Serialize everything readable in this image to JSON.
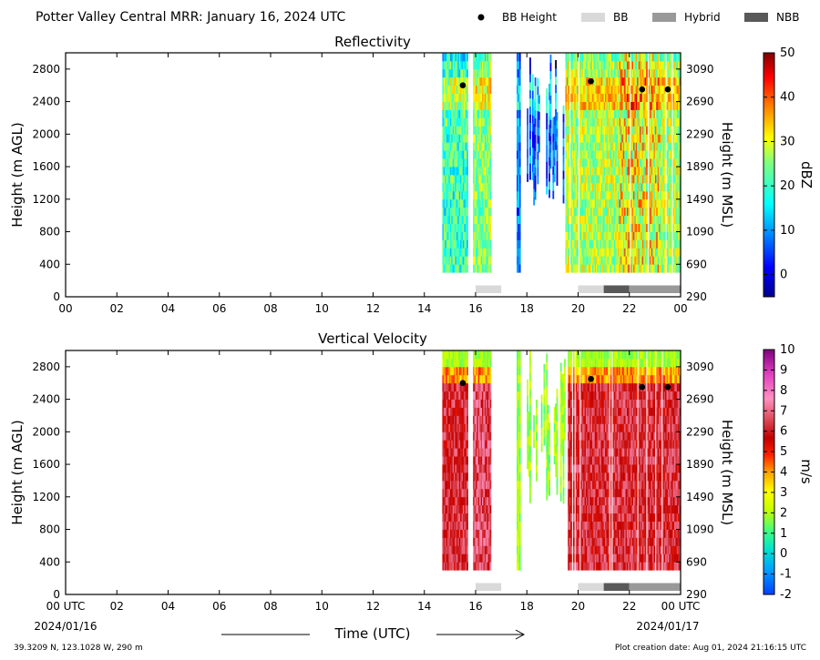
{
  "header": {
    "title": "Potter Valley Central MRR:  January 16, 2024 UTC",
    "legend": [
      {
        "label": "BB Height",
        "kind": "dot",
        "color": "#000000"
      },
      {
        "label": "BB",
        "kind": "box",
        "color": "#d9d9d9"
      },
      {
        "label": "Hybrid",
        "kind": "box",
        "color": "#999999"
      },
      {
        "label": "NBB",
        "kind": "box",
        "color": "#595959"
      }
    ]
  },
  "footer": {
    "location": "39.3209 N, 123.1028 W, 290 m",
    "creation_date": "Plot creation date: Aug 01, 2024 21:16:15 UTC",
    "xlabel": "Time (UTC)",
    "start_date": "2024/01/16",
    "end_date": "2024/01/17"
  },
  "chart_data": [
    {
      "type": "heatmap",
      "title": "Reflectivity",
      "ylabel": "Height (m AGL)",
      "ylabel_right": "Height (m MSL)",
      "colorbar_label": "dBZ",
      "colorbar_ticks": [
        "50",
        "40",
        "30",
        "20",
        "10",
        "0"
      ],
      "colorbar_range": [
        -5,
        50
      ],
      "xlim": [
        0,
        24
      ],
      "ylim": [
        0,
        3000
      ],
      "x_ticks": [
        "00",
        "02",
        "04",
        "06",
        "08",
        "10",
        "12",
        "14",
        "16",
        "18",
        "20",
        "22",
        "00"
      ],
      "y_ticks": [
        "0",
        "400",
        "800",
        "1200",
        "1600",
        "2000",
        "2400",
        "2800"
      ],
      "y_ticks_right": [
        "290",
        "690",
        "1090",
        "1490",
        "1890",
        "2290",
        "2690",
        "3090"
      ],
      "bb_height_points": [
        [
          15.5,
          2600
        ],
        [
          20.5,
          2650
        ],
        [
          22.5,
          2550
        ],
        [
          23.5,
          2550
        ]
      ],
      "bb_type_segments": [
        {
          "start": 16.0,
          "end": 17.0,
          "type": "BB"
        },
        {
          "start": 20.0,
          "end": 21.0,
          "type": "BB"
        },
        {
          "start": 21.0,
          "end": 22.0,
          "type": "NBB"
        },
        {
          "start": 22.0,
          "end": 24.0,
          "type": "Hybrid"
        }
      ]
    },
    {
      "type": "heatmap",
      "title": "Vertical Velocity",
      "ylabel": "Height (m AGL)",
      "ylabel_right": "Height (m MSL)",
      "colorbar_label": "m/s",
      "colorbar_ticks": [
        "10",
        "9",
        "8",
        "7",
        "6",
        "5",
        "4",
        "3",
        "2",
        "1",
        "0",
        "-1",
        "-2"
      ],
      "colorbar_range": [
        -2,
        10
      ],
      "xlim": [
        0,
        24
      ],
      "ylim": [
        0,
        3000
      ],
      "x_ticks": [
        "00 UTC",
        "02",
        "04",
        "06",
        "08",
        "10",
        "12",
        "14",
        "16",
        "18",
        "20",
        "22",
        "00 UTC"
      ],
      "y_ticks": [
        "0",
        "400",
        "800",
        "1200",
        "1600",
        "2000",
        "2400",
        "2800"
      ],
      "y_ticks_right": [
        "290",
        "690",
        "1090",
        "1490",
        "1890",
        "2290",
        "2690",
        "3090"
      ],
      "bb_height_points": [
        [
          15.5,
          2600
        ],
        [
          20.5,
          2650
        ],
        [
          22.5,
          2550
        ],
        [
          23.5,
          2550
        ]
      ],
      "bb_type_segments": [
        {
          "start": 16.0,
          "end": 17.0,
          "type": "BB"
        },
        {
          "start": 20.0,
          "end": 21.0,
          "type": "BB"
        },
        {
          "start": 21.0,
          "end": 22.0,
          "type": "NBB"
        },
        {
          "start": 22.0,
          "end": 24.0,
          "type": "Hybrid"
        }
      ]
    }
  ]
}
